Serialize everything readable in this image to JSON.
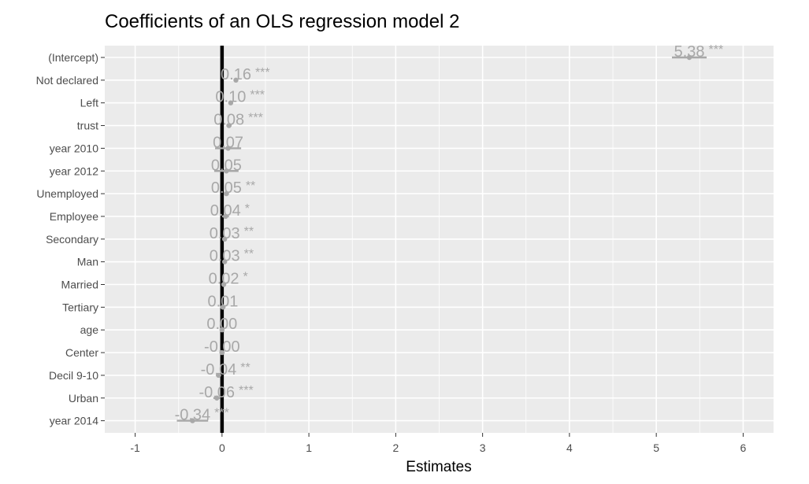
{
  "chart_data": {
    "type": "dot-and-whisker",
    "title": "Coefficients of an OLS regression model 2",
    "xlabel": "Estimates",
    "ylabel": "",
    "xlim": [
      -1.35,
      6.35
    ],
    "x_ticks": [
      -1,
      0,
      1,
      2,
      3,
      4,
      5,
      6
    ],
    "x_tick_labels": [
      "-1",
      "0",
      "1",
      "2",
      "3",
      "4",
      "5",
      "6"
    ],
    "grid": true,
    "reference_line": 0,
    "categories": [
      "(Intercept)",
      "Not declared",
      "Left",
      "trust",
      "year 2010",
      "year 2012",
      "Unemployed",
      "Employee",
      "Secondary",
      "Man",
      "Married",
      "Tertiary",
      "age",
      "Center",
      "Decil 9-10",
      "Urban",
      "year 2014"
    ],
    "estimates": [
      5.38,
      0.16,
      0.1,
      0.08,
      0.07,
      0.05,
      0.05,
      0.04,
      0.03,
      0.03,
      0.02,
      0.01,
      0.0,
      -0.0,
      -0.04,
      -0.06,
      -0.34
    ],
    "ci_low": [
      5.18,
      0.14,
      0.08,
      0.05,
      -0.08,
      -0.09,
      0.02,
      0.0,
      0.01,
      0.01,
      0.0,
      -0.02,
      -0.01,
      -0.03,
      -0.07,
      -0.1,
      -0.52
    ],
    "ci_high": [
      5.58,
      0.18,
      0.12,
      0.11,
      0.22,
      0.19,
      0.08,
      0.08,
      0.05,
      0.05,
      0.04,
      0.04,
      0.01,
      0.03,
      -0.01,
      -0.02,
      -0.16
    ],
    "value_labels": [
      "5.38",
      "0.16",
      "0.10",
      "0.08",
      "0.07",
      "0.05",
      "0.05",
      "0.04",
      "0.03",
      "0.03",
      "0.02",
      "0.01",
      "0.00",
      "-0.00",
      "-0.04",
      "-0.06",
      "-0.34"
    ],
    "significance": [
      "***",
      "***",
      "***",
      "***",
      "",
      "",
      "**",
      "*",
      "**",
      "**",
      "*",
      "",
      "",
      "",
      "**",
      "***",
      "***"
    ],
    "colors": {
      "panel": "#ebebeb",
      "grid": "#ffffff",
      "point": "#a8a8a8",
      "reference_line": "#000000"
    }
  }
}
